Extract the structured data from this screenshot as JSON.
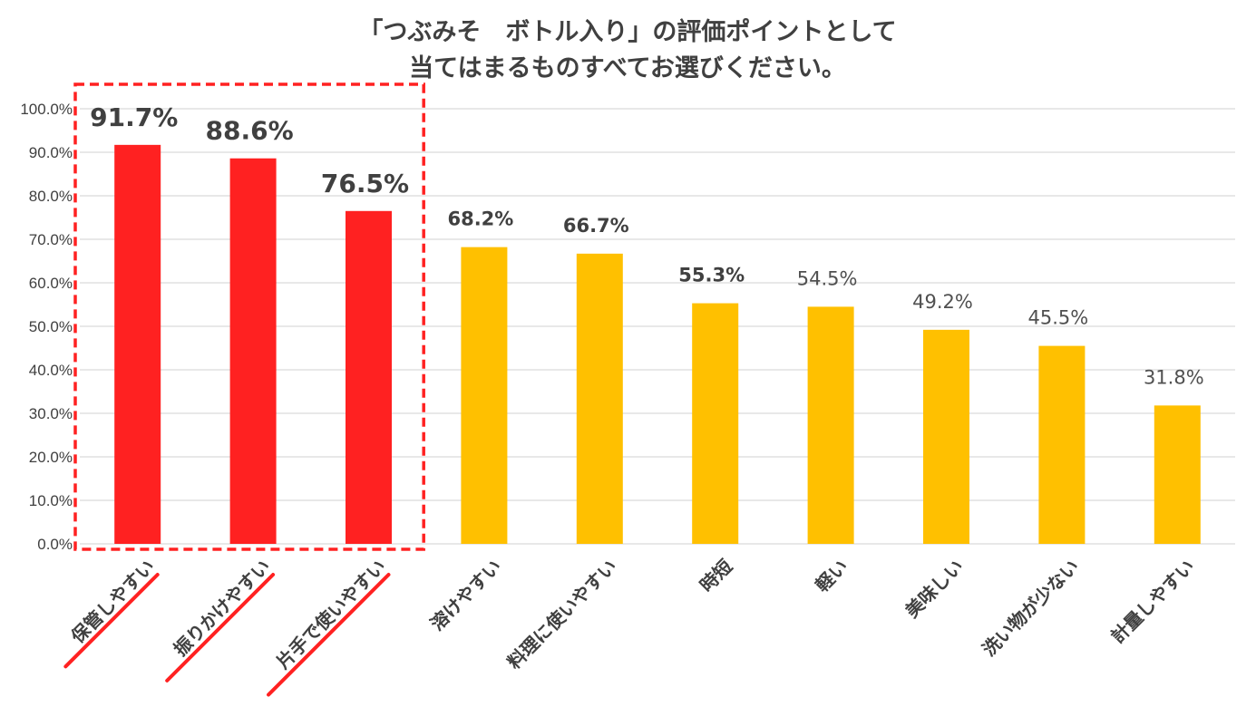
{
  "chart_data": {
    "type": "bar",
    "title": [
      "「つぶみそ　ボトル入り」の評価ポイントとして",
      "当てはまるものすべてお選びください。"
    ],
    "categories": [
      "保管しやすい",
      "振りかけやすい",
      "片手で使いやすい",
      "溶けやすい",
      "料理に使いやすい",
      "時短",
      "軽い",
      "美味しい",
      "洗い物が少ない",
      "計量しやすい"
    ],
    "values": [
      91.7,
      88.6,
      76.5,
      68.2,
      66.7,
      55.3,
      54.5,
      49.2,
      45.5,
      31.8
    ],
    "value_labels": [
      "91.7%",
      "88.6%",
      "76.5%",
      "68.2%",
      "66.7%",
      "55.3%",
      "54.5%",
      "49.2%",
      "45.5%",
      "31.8%"
    ],
    "label_weight": [
      "bold",
      "bold",
      "bold",
      "bold",
      "bold",
      "bold",
      "normal",
      "normal",
      "normal",
      "normal"
    ],
    "highlighted": [
      true,
      true,
      true,
      false,
      false,
      false,
      false,
      false,
      false,
      false
    ],
    "y_ticks": [
      "0.0%",
      "10.0%",
      "20.0%",
      "30.0%",
      "40.0%",
      "50.0%",
      "60.0%",
      "70.0%",
      "80.0%",
      "90.0%",
      "100.0%"
    ],
    "ylim": [
      0,
      100
    ],
    "xlabel": "",
    "ylabel": "",
    "grid": true,
    "legend": "none",
    "colors": {
      "highlight": "#FF2121",
      "normal": "#FFC000",
      "grid": "#D9D9D9",
      "text": "#404040",
      "highlight_label": "#E52526"
    }
  }
}
